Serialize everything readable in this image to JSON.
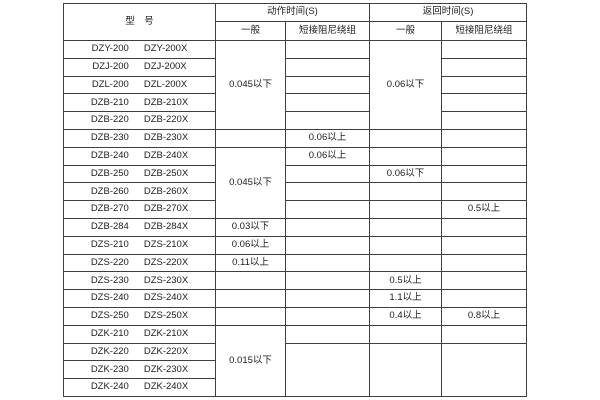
{
  "page": {
    "background": "#ffffff"
  },
  "table": {
    "border_color": "#3f3f3f",
    "text_color": "#1c1c1c",
    "header": {
      "model": "型　号",
      "action_time": "动作时间(S)",
      "return_time": "返回时间(S)",
      "general": "一般",
      "damped": "短接阻尼绕组"
    },
    "models": [
      {
        "left": "DZY-200",
        "right": "DZY-200X"
      },
      {
        "left": "DZJ-200",
        "right": "DZJ-200X"
      },
      {
        "left": "DZL-200",
        "right": "DZL-200X"
      },
      {
        "left": "DZB-210",
        "right": "DZB-210X"
      },
      {
        "left": "DZB-220",
        "right": "DZB-220X"
      },
      {
        "left": "DZB-230",
        "right": "DZB-230X"
      },
      {
        "left": "DZB-240",
        "right": "DZB-240X"
      },
      {
        "left": "DZB-250",
        "right": "DZB-250X"
      },
      {
        "left": "DZB-260",
        "right": "DZB-260X"
      },
      {
        "left": "DZB-270",
        "right": "DZB-270X"
      },
      {
        "left": "DZB-284",
        "right": "DZB-284X"
      },
      {
        "left": "DZS-210",
        "right": "DZS-210X"
      },
      {
        "left": "DZS-220",
        "right": "DZS-220X"
      },
      {
        "left": "DZS-230",
        "right": "DZS-230X"
      },
      {
        "left": "DZS-240",
        "right": "DZS-240X"
      },
      {
        "left": "DZS-250",
        "right": "DZS-250X"
      },
      {
        "left": "DZK-210",
        "right": "DZK-210X"
      },
      {
        "left": "DZK-220",
        "right": "DZK-220X"
      },
      {
        "left": "DZK-230",
        "right": "DZK-230X"
      },
      {
        "left": "DZK-240",
        "right": "DZK-240X"
      }
    ],
    "value_columns": [
      {
        "name": "action-general",
        "segments": [
          {
            "span": 5,
            "text": "0.045以下"
          },
          {
            "span": 1,
            "text": ""
          },
          {
            "span": 4,
            "text": "0.045以下"
          },
          {
            "span": 1,
            "text": "0.03以下"
          },
          {
            "span": 1,
            "text": "0.06以上"
          },
          {
            "span": 1,
            "text": "0.11以上"
          },
          {
            "span": 1,
            "text": ""
          },
          {
            "span": 1,
            "text": ""
          },
          {
            "span": 1,
            "text": ""
          },
          {
            "span": 4,
            "text": "0.015以下"
          }
        ]
      },
      {
        "name": "action-damped",
        "segments": [
          {
            "span": 1,
            "text": ""
          },
          {
            "span": 1,
            "text": ""
          },
          {
            "span": 1,
            "text": ""
          },
          {
            "span": 1,
            "text": ""
          },
          {
            "span": 1,
            "text": ""
          },
          {
            "span": 1,
            "text": "0.06以上"
          },
          {
            "span": 1,
            "text": "0.06以上"
          },
          {
            "span": 1,
            "text": ""
          },
          {
            "span": 1,
            "text": ""
          },
          {
            "span": 1,
            "text": ""
          },
          {
            "span": 1,
            "text": ""
          },
          {
            "span": 1,
            "text": ""
          },
          {
            "span": 1,
            "text": ""
          },
          {
            "span": 1,
            "text": ""
          },
          {
            "span": 1,
            "text": ""
          },
          {
            "span": 1,
            "text": ""
          },
          {
            "span": 1,
            "text": ""
          },
          {
            "span": 3,
            "text": ""
          }
        ]
      },
      {
        "name": "return-general",
        "segments": [
          {
            "span": 5,
            "text": "0.06以下"
          },
          {
            "span": 1,
            "text": ""
          },
          {
            "span": 1,
            "text": ""
          },
          {
            "span": 1,
            "text": "0.06以下"
          },
          {
            "span": 1,
            "text": ""
          },
          {
            "span": 1,
            "text": ""
          },
          {
            "span": 1,
            "text": ""
          },
          {
            "span": 1,
            "text": ""
          },
          {
            "span": 1,
            "text": ""
          },
          {
            "span": 1,
            "text": "0.5以上"
          },
          {
            "span": 1,
            "text": "1.1以上"
          },
          {
            "span": 1,
            "text": "0.4以上"
          },
          {
            "span": 1,
            "text": ""
          },
          {
            "span": 3,
            "text": ""
          }
        ]
      },
      {
        "name": "return-damped",
        "segments": [
          {
            "span": 1,
            "text": ""
          },
          {
            "span": 1,
            "text": ""
          },
          {
            "span": 1,
            "text": ""
          },
          {
            "span": 1,
            "text": ""
          },
          {
            "span": 1,
            "text": ""
          },
          {
            "span": 1,
            "text": ""
          },
          {
            "span": 1,
            "text": ""
          },
          {
            "span": 1,
            "text": ""
          },
          {
            "span": 1,
            "text": ""
          },
          {
            "span": 1,
            "text": "0.5以上"
          },
          {
            "span": 1,
            "text": ""
          },
          {
            "span": 1,
            "text": ""
          },
          {
            "span": 1,
            "text": ""
          },
          {
            "span": 1,
            "text": ""
          },
          {
            "span": 1,
            "text": ""
          },
          {
            "span": 1,
            "text": "0.8以上"
          },
          {
            "span": 1,
            "text": ""
          },
          {
            "span": 3,
            "text": ""
          }
        ]
      }
    ]
  }
}
